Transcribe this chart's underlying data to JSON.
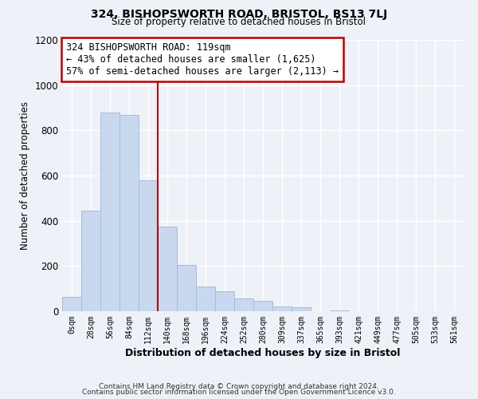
{
  "title": "324, BISHOPSWORTH ROAD, BRISTOL, BS13 7LJ",
  "subtitle": "Size of property relative to detached houses in Bristol",
  "xlabel": "Distribution of detached houses by size in Bristol",
  "ylabel": "Number of detached properties",
  "bar_labels": [
    "0sqm",
    "28sqm",
    "56sqm",
    "84sqm",
    "112sqm",
    "140sqm",
    "168sqm",
    "196sqm",
    "224sqm",
    "252sqm",
    "280sqm",
    "309sqm",
    "337sqm",
    "365sqm",
    "393sqm",
    "421sqm",
    "449sqm",
    "477sqm",
    "505sqm",
    "533sqm",
    "561sqm"
  ],
  "bar_values": [
    65,
    445,
    880,
    870,
    580,
    375,
    205,
    110,
    90,
    58,
    45,
    22,
    17,
    0,
    5,
    0,
    0,
    0,
    0,
    0,
    0
  ],
  "bar_color": "#c8d8ee",
  "bar_edge_color": "#a8bcd8",
  "vline_x": 4.5,
  "vline_color": "#bb0000",
  "annotation_text": "324 BISHOPSWORTH ROAD: 119sqm\n← 43% of detached houses are smaller (1,625)\n57% of semi-detached houses are larger (2,113) →",
  "annotation_box_color": "#ffffff",
  "annotation_box_edge": "#bb0000",
  "ylim": [
    0,
    1200
  ],
  "yticks": [
    0,
    200,
    400,
    600,
    800,
    1000,
    1200
  ],
  "footer_line1": "Contains HM Land Registry data © Crown copyright and database right 2024.",
  "footer_line2": "Contains public sector information licensed under the Open Government Licence v3.0.",
  "bg_color": "#eef2f8",
  "plot_bg_color": "#eef2f8"
}
